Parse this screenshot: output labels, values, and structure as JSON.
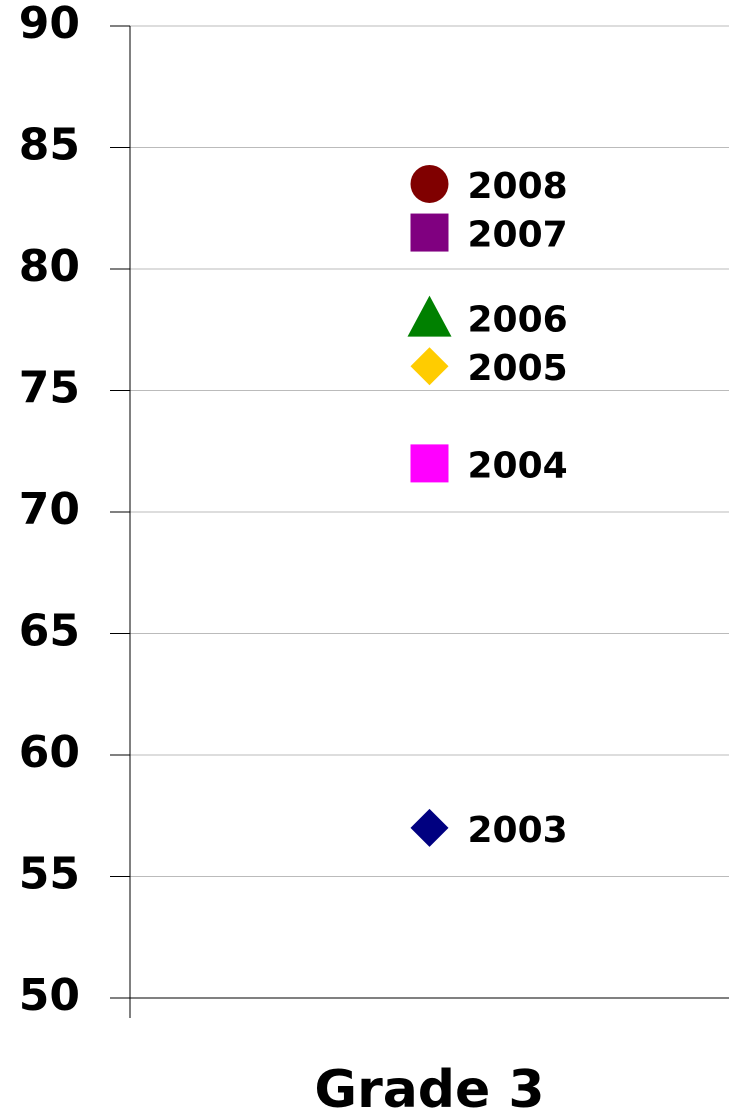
{
  "chart_data": {
    "type": "scatter",
    "categories": [
      "Grade 3"
    ],
    "series": [
      {
        "name": "2003",
        "color": "#000080",
        "marker": "diamond",
        "values": [
          57
        ]
      },
      {
        "name": "2004",
        "color": "#ff00ff",
        "marker": "square",
        "values": [
          72
        ]
      },
      {
        "name": "2005",
        "color": "#ffcc00",
        "marker": "diamond",
        "values": [
          76
        ]
      },
      {
        "name": "2006",
        "color": "#008000",
        "marker": "triangle",
        "values": [
          78
        ]
      },
      {
        "name": "2007",
        "color": "#800080",
        "marker": "square",
        "values": [
          81.5
        ]
      },
      {
        "name": "2008",
        "color": "#800000",
        "marker": "circle",
        "values": [
          83.5
        ]
      }
    ],
    "ylim": [
      50,
      90
    ],
    "yticks": [
      50,
      55,
      60,
      65,
      70,
      75,
      80,
      85,
      90
    ],
    "grid": true
  }
}
